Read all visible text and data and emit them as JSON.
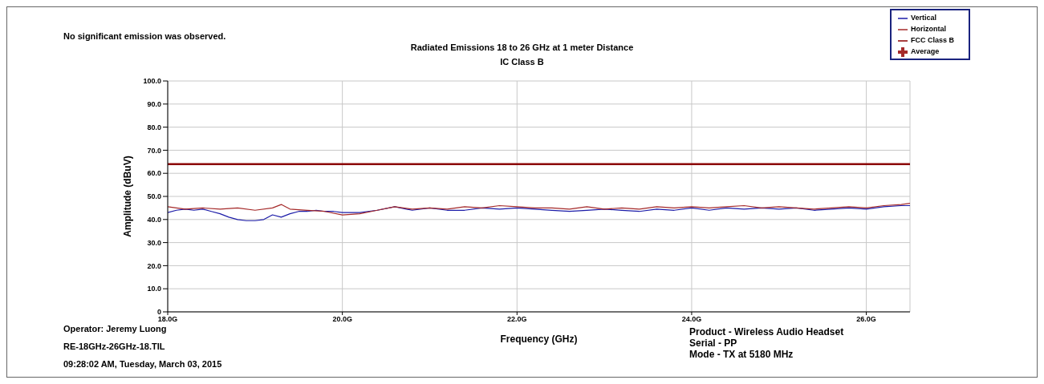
{
  "chart_data": {
    "type": "line",
    "title": "Radiated Emissions 18 to 26 GHz at 1 meter Distance",
    "subtitle": "IC Class B",
    "xlabel": "Frequency (GHz)",
    "ylabel": "Amplitude (dBuV)",
    "annotations": [
      "No significant emission was observed.",
      "Operator: Jeremy Luong",
      "RE-18GHz-26GHz-18.TIL",
      "09:28:02 AM, Tuesday, March 03, 2015",
      "Product - Wireless Audio Headset",
      "Serial - PP",
      "Mode - TX at 5180 MHz"
    ],
    "xlim": [
      18,
      26.5
    ],
    "xticks": [
      {
        "value": 18,
        "label": "18.0G"
      },
      {
        "value": 20,
        "label": "20.0G"
      },
      {
        "value": 22,
        "label": "22.0G"
      },
      {
        "value": 24,
        "label": "24.0G"
      },
      {
        "value": 26,
        "label": "26.0G"
      }
    ],
    "ylim": [
      0,
      100
    ],
    "yticks": [
      {
        "value": 0,
        "label": "0"
      },
      {
        "value": 10,
        "label": "10.0"
      },
      {
        "value": 20,
        "label": "20.0"
      },
      {
        "value": 30,
        "label": "30.0"
      },
      {
        "value": 40,
        "label": "40.0"
      },
      {
        "value": 50,
        "label": "50.0"
      },
      {
        "value": 60,
        "label": "60.0"
      },
      {
        "value": 70,
        "label": "70.0"
      },
      {
        "value": 80,
        "label": "80.0"
      },
      {
        "value": 90,
        "label": "90.0"
      },
      {
        "value": 100,
        "label": "100.0"
      }
    ],
    "grid": true,
    "legend": "top right",
    "marker": "none",
    "line_style": "solid",
    "series": [
      {
        "name": "Vertical",
        "color": "#1c1ca8",
        "x": [
          18.0,
          18.1,
          18.2,
          18.3,
          18.4,
          18.5,
          18.6,
          18.7,
          18.8,
          18.9,
          19.0,
          19.1,
          19.2,
          19.3,
          19.4,
          19.5,
          19.6,
          19.7,
          19.8,
          19.9,
          20.0,
          20.2,
          20.4,
          20.6,
          20.8,
          21.0,
          21.2,
          21.4,
          21.6,
          21.8,
          22.0,
          22.2,
          22.4,
          22.6,
          22.8,
          23.0,
          23.2,
          23.4,
          23.6,
          23.8,
          24.0,
          24.2,
          24.4,
          24.6,
          24.8,
          25.0,
          25.2,
          25.4,
          25.6,
          25.8,
          26.0,
          26.2,
          26.4,
          26.5
        ],
        "values": [
          43,
          44,
          44.5,
          44,
          44.5,
          43.5,
          42.5,
          41,
          40,
          39.5,
          39.5,
          40,
          42,
          41,
          42.5,
          43.5,
          43.5,
          44,
          43.5,
          43.5,
          43,
          43,
          44,
          45.5,
          44,
          45,
          44,
          44,
          45,
          44.5,
          45,
          44.5,
          44,
          43.5,
          44,
          44.5,
          44,
          43.5,
          44.5,
          44,
          45,
          44,
          45,
          44.5,
          45,
          44.5,
          45,
          44,
          44.5,
          45,
          44.5,
          45.5,
          46,
          46
        ]
      },
      {
        "name": "Horizontal",
        "color": "#a52a2a",
        "x": [
          18.0,
          18.1,
          18.2,
          18.4,
          18.6,
          18.8,
          19.0,
          19.2,
          19.3,
          19.4,
          19.6,
          19.8,
          20.0,
          20.2,
          20.4,
          20.6,
          20.8,
          21.0,
          21.2,
          21.4,
          21.6,
          21.8,
          22.0,
          22.2,
          22.4,
          22.6,
          22.8,
          23.0,
          23.2,
          23.4,
          23.6,
          23.8,
          24.0,
          24.2,
          24.4,
          24.6,
          24.8,
          25.0,
          25.2,
          25.4,
          25.6,
          25.8,
          26.0,
          26.2,
          26.4,
          26.5
        ],
        "values": [
          45.5,
          45,
          44.5,
          45,
          44.5,
          45,
          44,
          45,
          46.5,
          44.5,
          44,
          43.5,
          42,
          42.5,
          44,
          45.5,
          44.5,
          45,
          44.5,
          45.5,
          45,
          46,
          45.5,
          45,
          45,
          44.5,
          45.5,
          44.5,
          45,
          44.5,
          45.5,
          45,
          45.5,
          45,
          45.5,
          46,
          45,
          45.5,
          45,
          44.5,
          45,
          45.5,
          45,
          46,
          46.5,
          47
        ]
      },
      {
        "name": "FCC Class B",
        "color": "#8b0000",
        "x": [
          18,
          26.5
        ],
        "values": [
          64,
          64
        ]
      },
      {
        "name": "Average",
        "type": "scatter",
        "marker": "cross",
        "color": "#a52a2a"
      }
    ]
  }
}
